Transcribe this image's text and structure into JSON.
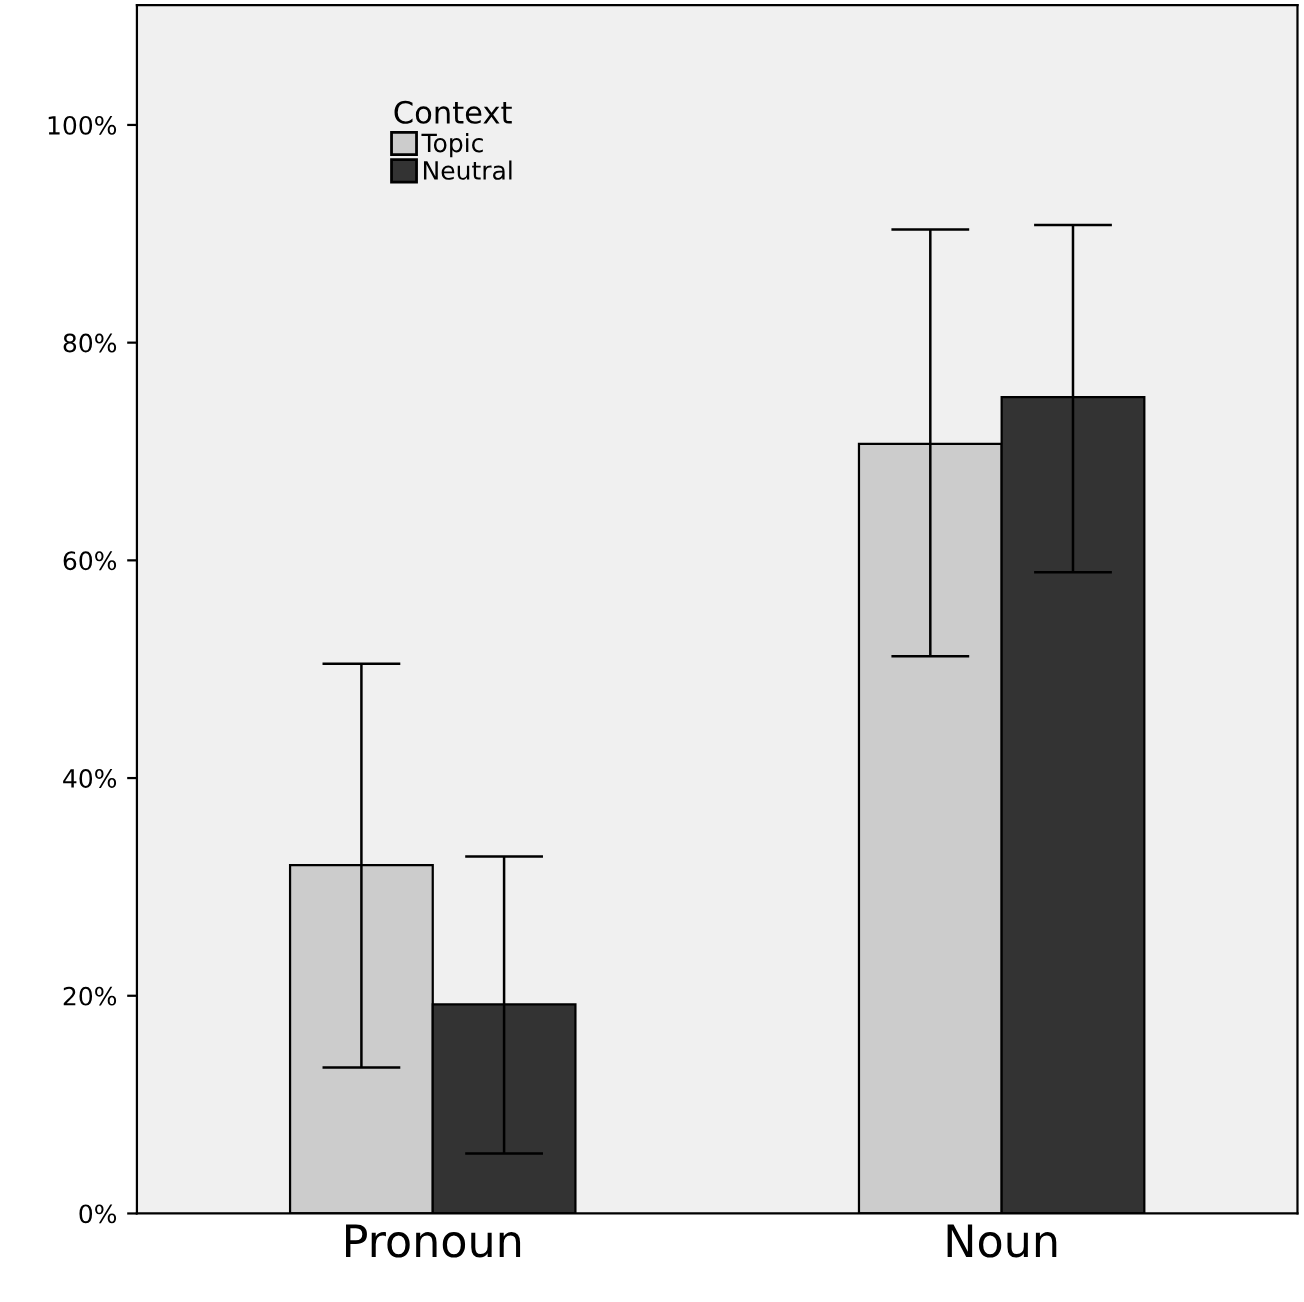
{
  "chart_data": {
    "type": "bar",
    "categories": [
      "Pronoun",
      "Noun"
    ],
    "series": [
      {
        "name": "Topic",
        "color": "#cccccc",
        "values": [
          32,
          70.7
        ],
        "errors": [
          [
            13.4,
            50.5
          ],
          [
            51.2,
            90.4
          ]
        ]
      },
      {
        "name": "Neutral",
        "color": "#333333",
        "values": [
          19.2,
          75
        ],
        "errors": [
          [
            5.5,
            32.8
          ],
          [
            58.9,
            90.8
          ]
        ]
      }
    ],
    "legend_title": "Context",
    "legend": "top left",
    "ylim": [
      0,
      111
    ],
    "yticks": [
      {
        "value": 0,
        "label": "0%"
      },
      {
        "value": 20,
        "label": "20%"
      },
      {
        "value": 40,
        "label": "40%"
      },
      {
        "value": 60,
        "label": "60%"
      },
      {
        "value": 80,
        "label": "80%"
      },
      {
        "value": 100,
        "label": "100%"
      }
    ],
    "grid": false
  }
}
